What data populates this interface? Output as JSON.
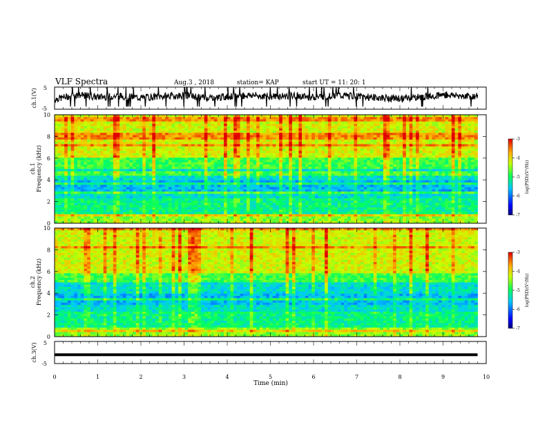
{
  "header": {
    "title": "VLF Spectra",
    "date": "Aug.3 , 2018",
    "station": "station= KAP",
    "start": "start UT = 11: 20: 1"
  },
  "chart_data": [
    {
      "id": "ch1-waveform",
      "type": "line",
      "ylabel": "ch.1(V)",
      "ylim": [
        -5,
        5
      ],
      "yticks": [
        "5",
        "-5"
      ],
      "xlim": [
        0,
        10
      ],
      "line_color": "#000000",
      "description_level_mean": 0.3,
      "x": [
        0,
        0.5,
        1,
        1.5,
        2,
        2.5,
        3,
        3.5,
        4,
        4.5,
        5,
        5.5,
        6,
        6.5,
        7,
        7.5,
        8,
        8.5,
        9,
        9.5,
        9.8
      ],
      "y": [
        -0.5,
        1.5,
        0.5,
        1.0,
        0.2,
        0.8,
        1.2,
        0.3,
        0.6,
        1.4,
        0.7,
        1.1,
        0.4,
        1.3,
        0.9,
        0.2,
        -0.2,
        0.5,
        1.6,
        1.0,
        0.8
      ]
    },
    {
      "id": "ch1-spectrogram",
      "type": "heatmap",
      "ylabel": "ch.1\nFrequency (kHz)",
      "ylim": [
        0,
        10
      ],
      "yticks": [
        "0",
        "2",
        "4",
        "6",
        "8",
        "10"
      ],
      "xlim": [
        0,
        10
      ],
      "data_end_min": 9.8,
      "colorbar": {
        "label": "log(PSD)(V²/Hz)",
        "range": [
          -7,
          -3
        ],
        "ticks": [
          "-3",
          "-4",
          "-5",
          "-6",
          "-7"
        ]
      }
    },
    {
      "id": "ch2-spectrogram",
      "type": "heatmap",
      "ylabel": "ch.2\nFrequency (kHz)",
      "ylim": [
        0,
        10
      ],
      "yticks": [
        "0",
        "2",
        "4",
        "6",
        "8",
        "10"
      ],
      "xlim": [
        0,
        10
      ],
      "data_end_min": 9.8,
      "colorbar": {
        "label": "log(PSD)(V²/Hz)",
        "range": [
          -7,
          -3
        ],
        "ticks": [
          "-3",
          "-4",
          "-5",
          "-6",
          "-7"
        ]
      }
    },
    {
      "id": "ch3-waveform",
      "type": "line",
      "ylabel": "ch.3(V)",
      "ylim": [
        -5,
        5
      ],
      "yticks": [
        "5",
        "-5"
      ],
      "xlim": [
        0,
        10
      ],
      "xlabel": "Time (min)",
      "xticks": [
        "0",
        "1",
        "2",
        "3",
        "4",
        "5",
        "6",
        "7",
        "8",
        "9",
        "10"
      ],
      "x": [
        0,
        9.8
      ],
      "y": [
        -1,
        -1
      ]
    }
  ]
}
